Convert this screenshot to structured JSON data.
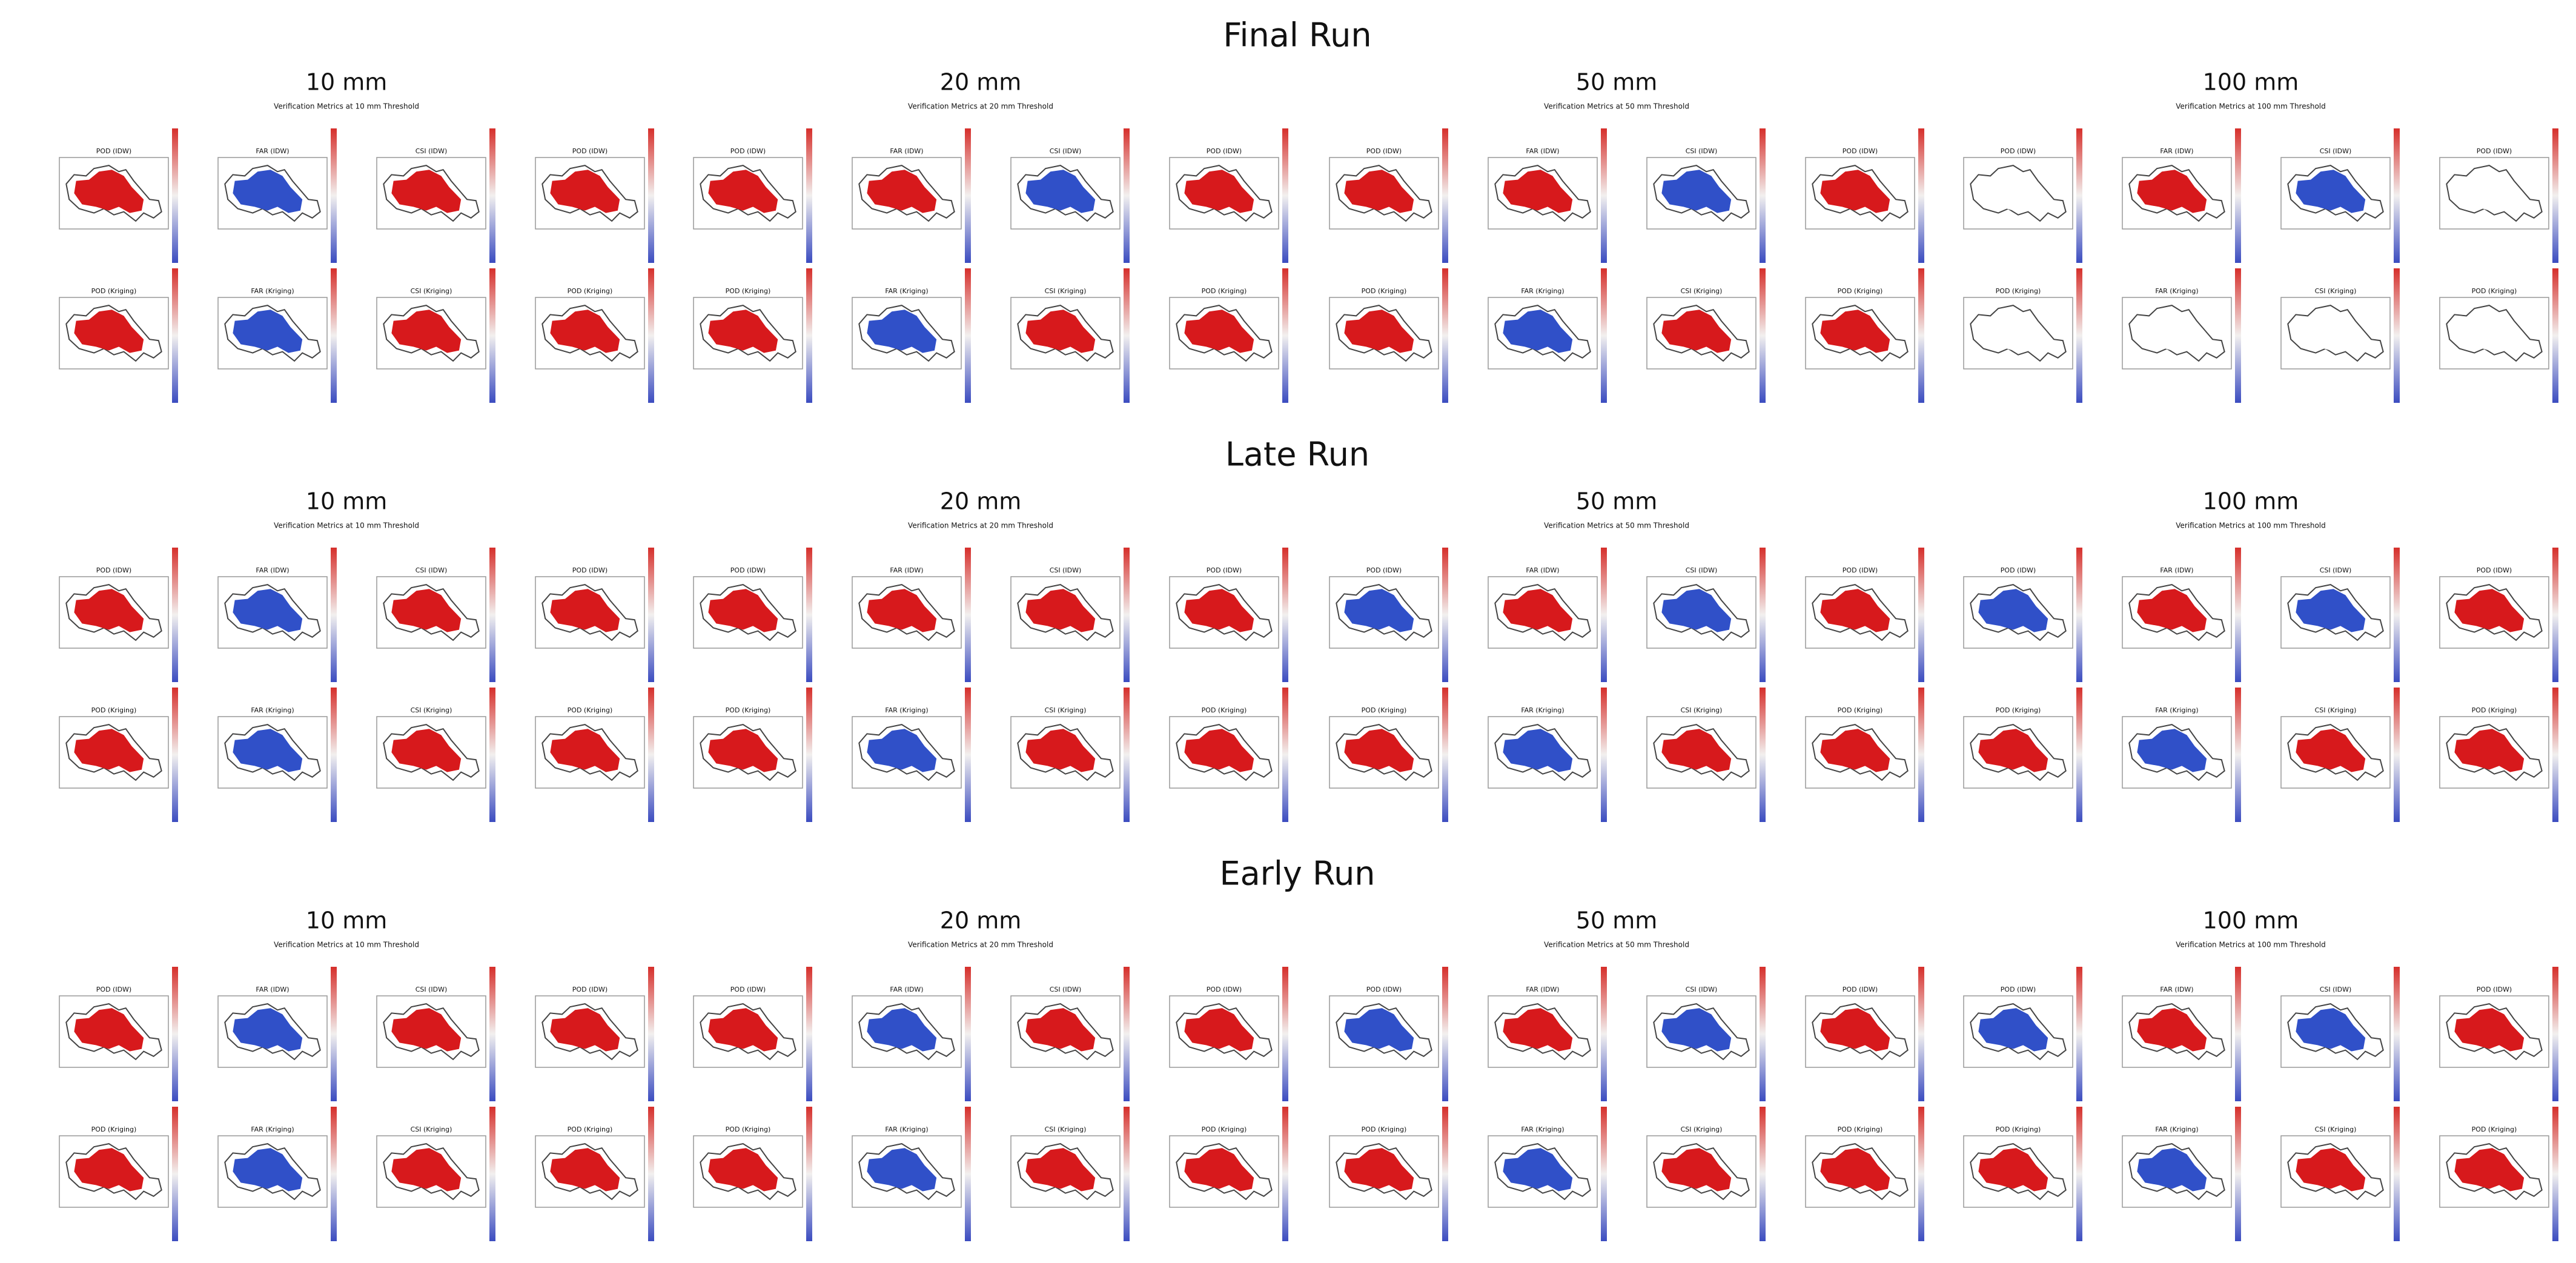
{
  "runs": [
    {
      "title": "Final Run",
      "fills": [
        [
          "#d7191c",
          "#3050c8",
          "#d7191c",
          "#d7191c",
          "#d7191c",
          "#3050c8",
          "#d7191c",
          "#d7191c"
        ],
        [
          "#d7191c",
          "#d7191c",
          "#3050c8",
          "#d7191c",
          "#d7191c",
          "#3050c8",
          "#d7191c",
          "#d7191c"
        ],
        [
          "#d7191c",
          "#d7191c",
          "#3050c8",
          "#d7191c",
          "#d7191c",
          "#3050c8",
          "#d7191c",
          "#d7191c"
        ],
        [
          "#ffffff",
          "#d7191c",
          "#3050c8",
          "#ffffff",
          "#ffffff",
          "#ffffff",
          "#ffffff",
          "#ffffff"
        ]
      ]
    },
    {
      "title": "Late Run",
      "fills": [
        [
          "#d7191c",
          "#3050c8",
          "#d7191c",
          "#d7191c",
          "#d7191c",
          "#3050c8",
          "#d7191c",
          "#d7191c"
        ],
        [
          "#d7191c",
          "#d7191c",
          "#d7191c",
          "#d7191c",
          "#d7191c",
          "#3050c8",
          "#d7191c",
          "#d7191c"
        ],
        [
          "#3050c8",
          "#d7191c",
          "#3050c8",
          "#d7191c",
          "#d7191c",
          "#3050c8",
          "#d7191c",
          "#d7191c"
        ],
        [
          "#3050c8",
          "#d7191c",
          "#3050c8",
          "#d7191c",
          "#d7191c",
          "#3050c8",
          "#d7191c",
          "#d7191c"
        ]
      ]
    },
    {
      "title": "Early Run",
      "fills": [
        [
          "#d7191c",
          "#3050c8",
          "#d7191c",
          "#d7191c",
          "#d7191c",
          "#3050c8",
          "#d7191c",
          "#d7191c"
        ],
        [
          "#d7191c",
          "#3050c8",
          "#d7191c",
          "#d7191c",
          "#d7191c",
          "#3050c8",
          "#d7191c",
          "#d7191c"
        ],
        [
          "#3050c8",
          "#d7191c",
          "#3050c8",
          "#d7191c",
          "#d7191c",
          "#3050c8",
          "#d7191c",
          "#d7191c"
        ],
        [
          "#3050c8",
          "#d7191c",
          "#3050c8",
          "#d7191c",
          "#d7191c",
          "#3050c8",
          "#d7191c",
          "#d7191c"
        ]
      ]
    }
  ],
  "thresholds": [
    {
      "label": "10 mm",
      "subtitle": "Verification Metrics at 10 mm Threshold"
    },
    {
      "label": "20 mm",
      "subtitle": "Verification Metrics at 20 mm Threshold"
    },
    {
      "label": "50 mm",
      "subtitle": "Verification Metrics at 50 mm Threshold"
    },
    {
      "label": "100 mm",
      "subtitle": "Verification Metrics at 100 mm Threshold"
    }
  ],
  "panel_titles": [
    "POD (IDW)",
    "FAR (IDW)",
    "CSI (IDW)",
    "POD (IDW)",
    "POD (Kriging)",
    "FAR (Kriging)",
    "CSI (Kriging)",
    "POD (Kriging)"
  ]
}
